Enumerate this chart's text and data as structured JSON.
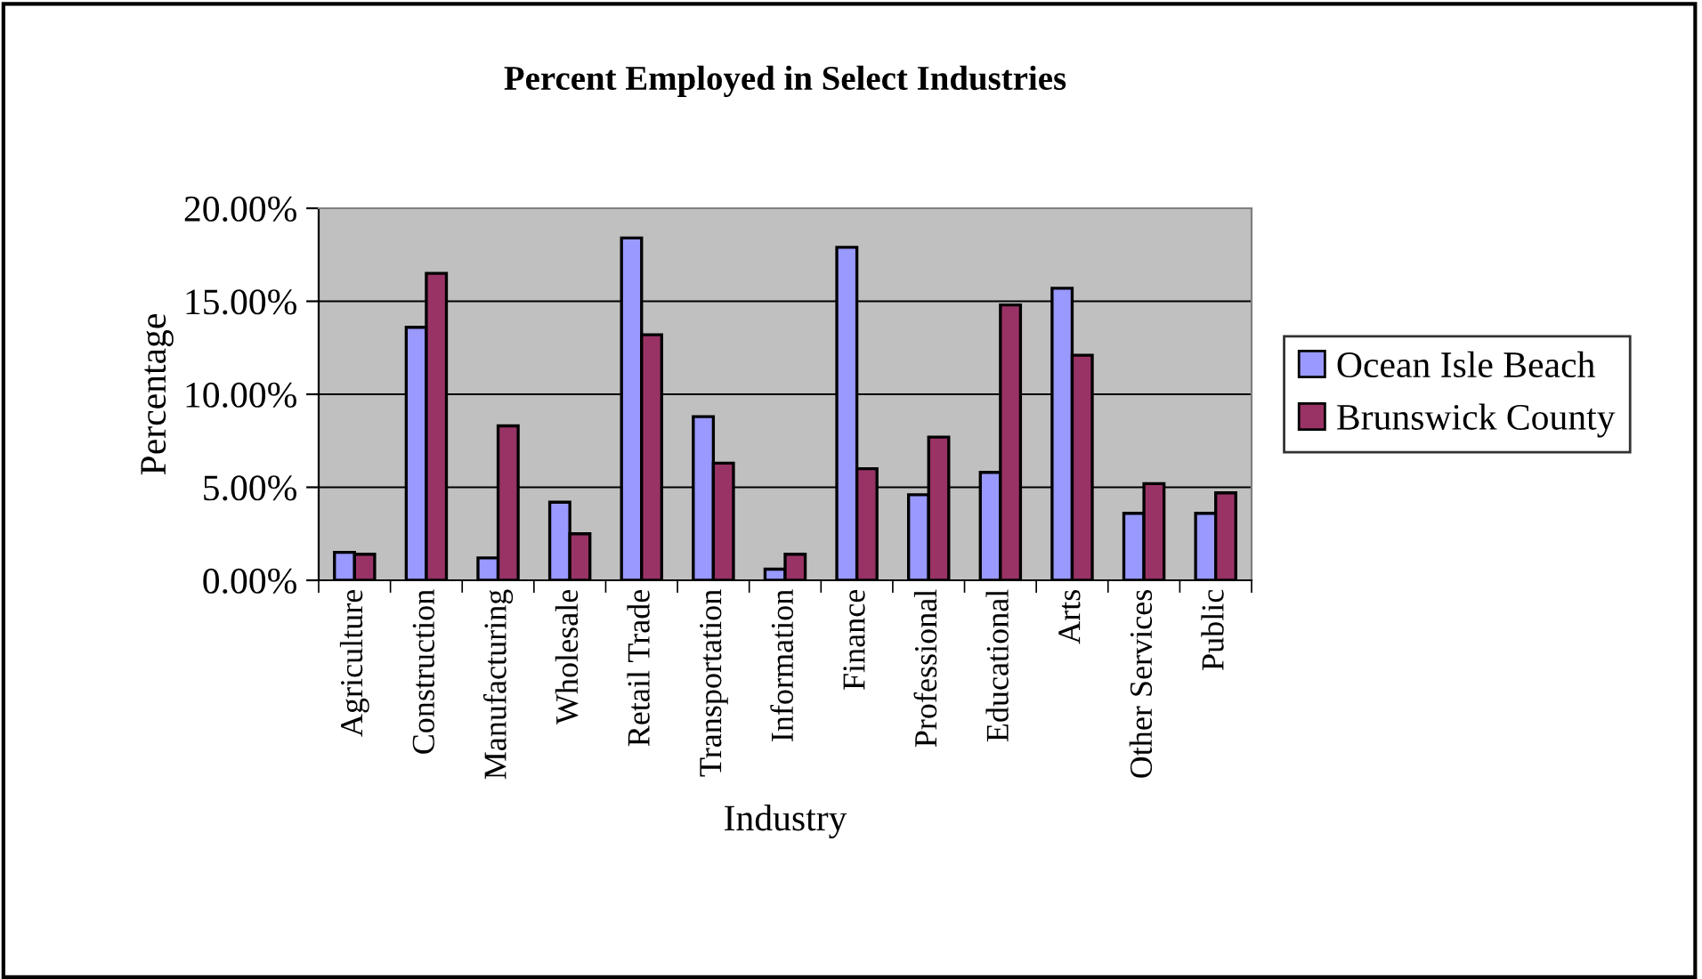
{
  "chart_data": {
    "type": "bar",
    "title": "Percent Employed in Select Industries",
    "xlabel": "Industry",
    "ylabel": "Percentage",
    "categories": [
      "Agriculture",
      "Construction",
      "Manufacturing",
      "Wholesale",
      "Retail Trade",
      "Transportation",
      "Information",
      "Finance",
      "Professional",
      "Educational",
      "Arts",
      "Other Services",
      "Public"
    ],
    "series": [
      {
        "name": "Ocean Isle Beach",
        "color": "#9999ff",
        "values": [
          1.5,
          13.6,
          1.2,
          4.2,
          18.4,
          8.8,
          0.6,
          17.9,
          4.6,
          5.8,
          15.7,
          3.6,
          3.6
        ]
      },
      {
        "name": "Brunswick County",
        "color": "#993366",
        "values": [
          1.4,
          16.5,
          8.3,
          2.5,
          13.2,
          6.3,
          1.4,
          6.0,
          7.7,
          14.8,
          12.1,
          5.2,
          4.7
        ]
      }
    ],
    "ylim": [
      0,
      20
    ],
    "yticks": [
      {
        "value": 0,
        "label": "0.00%"
      },
      {
        "value": 5,
        "label": "5.00%"
      },
      {
        "value": 10,
        "label": "10.00%"
      },
      {
        "value": 15,
        "label": "15.00%"
      },
      {
        "value": 20,
        "label": "20.00%"
      }
    ],
    "grid": "y",
    "legend": "right"
  }
}
